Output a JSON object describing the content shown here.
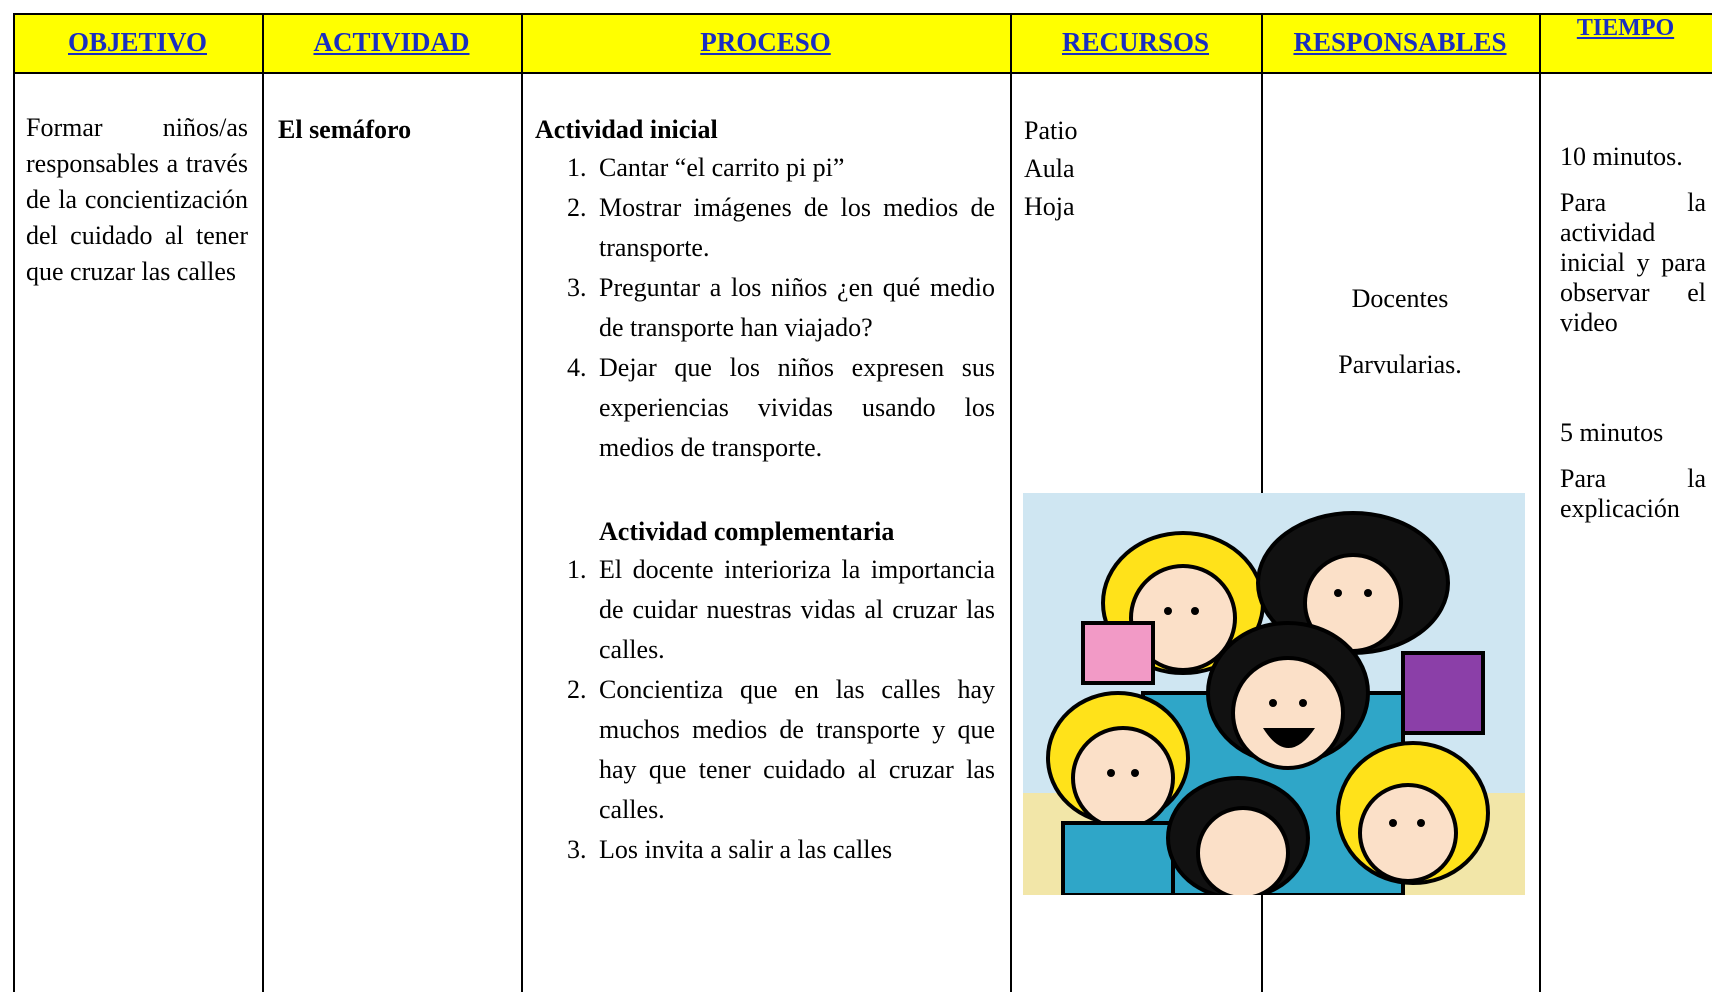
{
  "table": {
    "headers": [
      "OBJETIVO",
      "ACTIVIDAD",
      "PROCESO",
      "RECURSOS",
      "RESPONSABLES",
      "TIEMPO"
    ],
    "row": {
      "objetivo": "Formar niños/as responsables a través de la concientización del cuidado al tener que cruzar las calles",
      "actividad": "El semáforo",
      "proceso": [
        {
          "title": "Actividad inicial",
          "items": [
            "Cantar “el carrito pi pi”",
            "Mostrar imágenes de los medios de transporte.",
            "Preguntar a los niños ¿en qué medio de transporte han viajado?",
            "Dejar que los niños expresen sus experiencias vividas usando los medios de transporte."
          ]
        },
        {
          "title": "Actividad complementaria",
          "items": [
            "El docente interioriza la importancia de cuidar nuestras vidas al cruzar las calles.",
            "Concientiza que en las calles hay muchos medios de transporte y que hay que tener cuidado al cruzar las calles.",
            "Los invita a salir a las calles"
          ]
        }
      ],
      "recursos": [
        "Patio",
        "Aula",
        "Hoja"
      ],
      "responsables": [
        "Docentes",
        "Parvularias."
      ],
      "tiempo": [
        "10 minutos.",
        "Para la actividad inicial y para observar el video",
        "5 minutos",
        "Para la explicación"
      ]
    }
  }
}
